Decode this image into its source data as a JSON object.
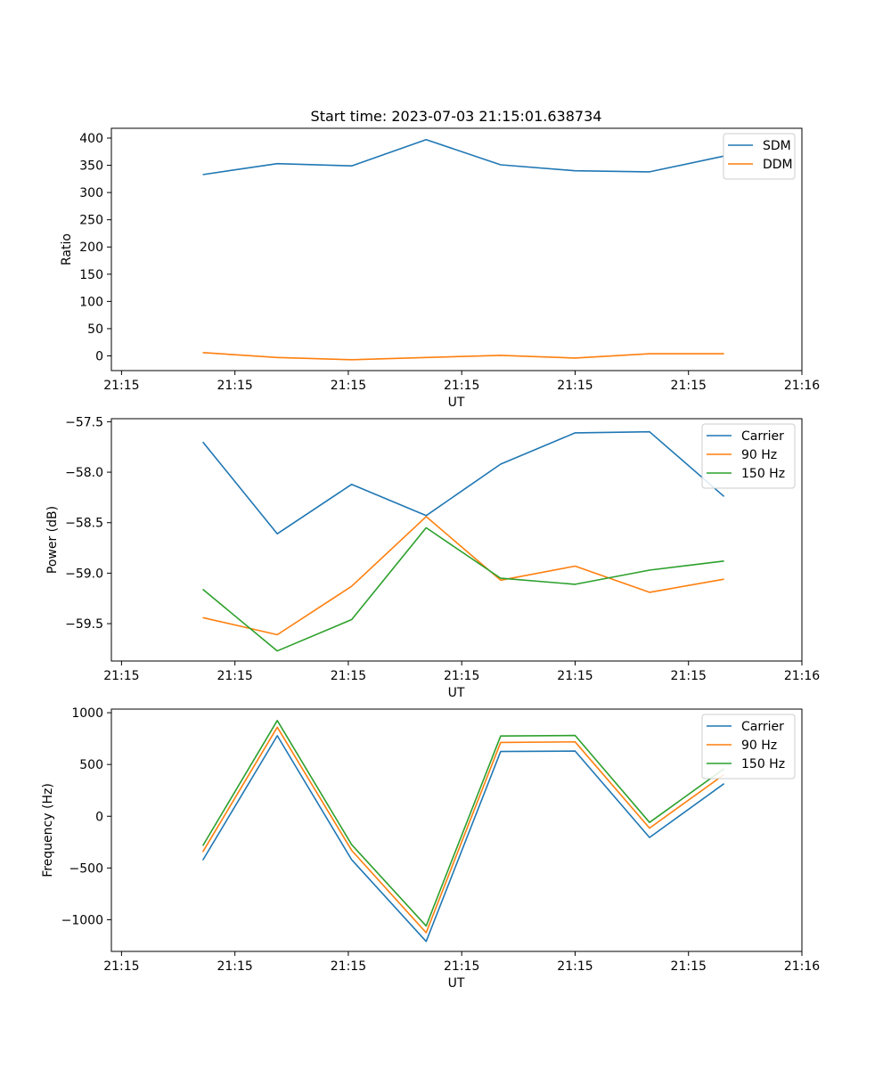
{
  "figure_title": "Start time: 2023-07-03 21:15:01.638734",
  "chart_data": [
    {
      "type": "line",
      "title": "Start time: 2023-07-03 21:15:01.638734",
      "xlabel": "UT",
      "ylabel": "Ratio",
      "x": [
        2.4,
        4.6,
        6.8,
        9.0,
        11.2,
        13.4,
        15.6,
        17.8
      ],
      "xlim": [
        -0.3,
        20.1
      ],
      "xticks": [
        0.0,
        3.35,
        6.7,
        10.05,
        13.4,
        16.75,
        20.1
      ],
      "xticklabels": [
        "21:15",
        "21:15",
        "21:15",
        "21:15",
        "21:15",
        "21:15",
        "21:16"
      ],
      "ylim": [
        -27,
        418
      ],
      "yticks": [
        0,
        50,
        100,
        150,
        200,
        250,
        300,
        350,
        400
      ],
      "yticklabels": [
        "0",
        "50",
        "100",
        "150",
        "200",
        "250",
        "300",
        "350",
        "400"
      ],
      "legend_position": "top-right",
      "series": [
        {
          "name": "SDM",
          "color": "#1f77b4",
          "values": [
            333,
            353,
            349,
            397,
            351,
            340,
            338,
            367
          ]
        },
        {
          "name": "DDM",
          "color": "#ff7f0e",
          "values": [
            6,
            -3,
            -7,
            -3,
            1,
            -4,
            4,
            4
          ]
        }
      ]
    },
    {
      "type": "line",
      "title": "",
      "xlabel": "UT",
      "ylabel": "Power (dB)",
      "x": [
        2.4,
        4.6,
        6.8,
        9.0,
        11.2,
        13.4,
        15.6,
        17.8
      ],
      "xlim": [
        -0.3,
        20.1
      ],
      "xticks": [
        0.0,
        3.35,
        6.7,
        10.05,
        13.4,
        16.75,
        20.1
      ],
      "xticklabels": [
        "21:15",
        "21:15",
        "21:15",
        "21:15",
        "21:15",
        "21:15",
        "21:16"
      ],
      "ylim": [
        -59.87,
        -57.47
      ],
      "yticks": [
        -59.5,
        -59.0,
        -58.5,
        -58.0,
        -57.5
      ],
      "yticklabels": [
        "−59.5",
        "−59.0",
        "−58.5",
        "−58.0",
        "−57.5"
      ],
      "legend_position": "top-right",
      "series": [
        {
          "name": "Carrier",
          "color": "#1f77b4",
          "values": [
            -57.7,
            -58.61,
            -58.12,
            -58.43,
            -57.92,
            -57.61,
            -57.6,
            -58.24
          ]
        },
        {
          "name": "90 Hz",
          "color": "#ff7f0e",
          "values": [
            -59.44,
            -59.61,
            -59.13,
            -58.44,
            -59.07,
            -58.93,
            -59.19,
            -59.06
          ]
        },
        {
          "name": "150 Hz",
          "color": "#2ca02c",
          "values": [
            -59.16,
            -59.77,
            -59.46,
            -58.55,
            -59.05,
            -59.11,
            -58.97,
            -58.88
          ]
        }
      ]
    },
    {
      "type": "line",
      "title": "",
      "xlabel": "UT",
      "ylabel": "Frequency (Hz)",
      "x": [
        2.4,
        4.6,
        6.8,
        9.0,
        11.2,
        13.4,
        15.6,
        17.8
      ],
      "xlim": [
        -0.3,
        20.1
      ],
      "xticks": [
        0.0,
        3.35,
        6.7,
        10.05,
        13.4,
        16.75,
        20.1
      ],
      "xticklabels": [
        "21:15",
        "21:15",
        "21:15",
        "21:15",
        "21:15",
        "21:15",
        "21:16"
      ],
      "ylim": [
        -1306,
        1035
      ],
      "yticks": [
        -1000,
        -500,
        0,
        500,
        1000
      ],
      "yticklabels": [
        "−1000",
        "−500",
        "0",
        "500",
        "1000"
      ],
      "legend_position": "top-right",
      "series": [
        {
          "name": "Carrier",
          "color": "#1f77b4",
          "values": [
            -425,
            778,
            -420,
            -1210,
            625,
            630,
            -205,
            315
          ]
        },
        {
          "name": "90 Hz",
          "color": "#ff7f0e",
          "values": [
            -345,
            860,
            -330,
            -1125,
            713,
            718,
            -115,
            402
          ]
        },
        {
          "name": "150 Hz",
          "color": "#2ca02c",
          "values": [
            -285,
            925,
            -275,
            -1060,
            775,
            780,
            -60,
            458
          ]
        }
      ]
    }
  ]
}
